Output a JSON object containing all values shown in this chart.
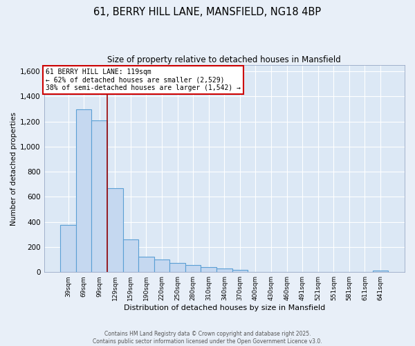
{
  "title1": "61, BERRY HILL LANE, MANSFIELD, NG18 4BP",
  "title2": "Size of property relative to detached houses in Mansfield",
  "xlabel": "Distribution of detached houses by size in Mansfield",
  "ylabel": "Number of detached properties",
  "categories": [
    "39sqm",
    "69sqm",
    "99sqm",
    "129sqm",
    "159sqm",
    "190sqm",
    "220sqm",
    "250sqm",
    "280sqm",
    "310sqm",
    "340sqm",
    "370sqm",
    "400sqm",
    "430sqm",
    "460sqm",
    "491sqm",
    "521sqm",
    "551sqm",
    "581sqm",
    "611sqm",
    "641sqm"
  ],
  "values": [
    375,
    1300,
    1210,
    670,
    260,
    120,
    100,
    75,
    55,
    40,
    30,
    15,
    0,
    0,
    0,
    0,
    0,
    0,
    0,
    0,
    10
  ],
  "bar_color": "#c5d8f0",
  "bar_edge_color": "#5a9fd4",
  "highlight_line_color": "#990000",
  "annotation_box_text": "61 BERRY HILL LANE: 119sqm\n← 62% of detached houses are smaller (2,529)\n38% of semi-detached houses are larger (1,542) →",
  "annotation_box_color": "#cc0000",
  "ylim": [
    0,
    1650
  ],
  "yticks": [
    0,
    200,
    400,
    600,
    800,
    1000,
    1200,
    1400,
    1600
  ],
  "bg_color": "#dce8f5",
  "grid_color": "#ffffff",
  "fig_bg_color": "#e8eff8",
  "footer1": "Contains HM Land Registry data © Crown copyright and database right 2025.",
  "footer2": "Contains public sector information licensed under the Open Government Licence v3.0."
}
